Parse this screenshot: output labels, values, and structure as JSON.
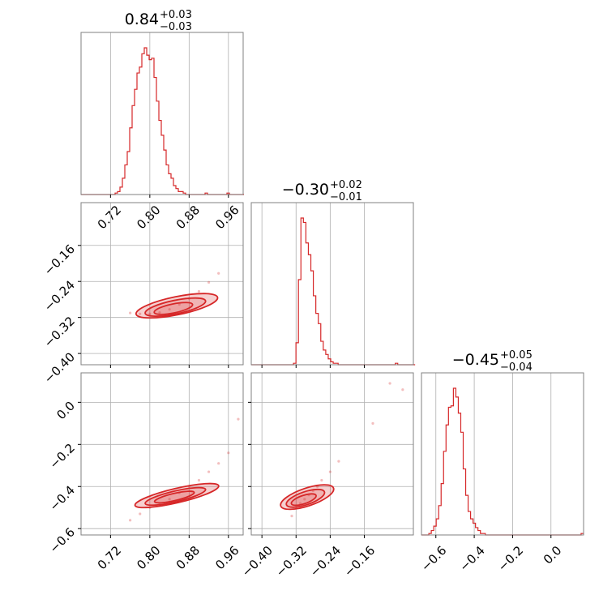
{
  "colors": {
    "series": "#d62728",
    "grid": "#b0b0b0",
    "frame": "#808080",
    "background": "#ffffff"
  },
  "chart_data": [
    {
      "type": "histogram",
      "panel": "1-1",
      "title": {
        "value": "0.84",
        "plus": "+0.03",
        "minus": "−0.03"
      },
      "xlim": [
        0.66,
        0.99
      ],
      "x_ticks": [
        0.72,
        0.8,
        0.88,
        0.96
      ],
      "x_ticklabels": [
        "0.72",
        "0.80",
        "0.88",
        "0.96"
      ],
      "grid": true,
      "bins": {
        "start": 0.66,
        "width": 0.00495,
        "counts": [
          0,
          0,
          0,
          0,
          0,
          0,
          0,
          0,
          0,
          0,
          0,
          0,
          0,
          0,
          1,
          2,
          5,
          11,
          20,
          29,
          45,
          60,
          71,
          82,
          86,
          95,
          99,
          94,
          91,
          92,
          79,
          63,
          50,
          40,
          30,
          20,
          14,
          11,
          6,
          4,
          2,
          2,
          1,
          0,
          0,
          0,
          0,
          0,
          0,
          0,
          0,
          1,
          0,
          0,
          0,
          0,
          0,
          0,
          0,
          0,
          1,
          0,
          0,
          0,
          0,
          0,
          0
        ]
      }
    },
    {
      "type": "scatter",
      "panel": "2-1",
      "xlim": [
        0.66,
        0.99
      ],
      "ylim": [
        -0.425,
        -0.065
      ],
      "x_ticks": [
        0.72,
        0.8,
        0.88,
        0.96
      ],
      "y_ticks": [
        -0.16,
        -0.24,
        -0.32,
        -0.4
      ],
      "y_ticklabels": [
        "−0.16",
        "−0.24",
        "−0.32",
        "−0.40"
      ],
      "grid": true,
      "points": [
        [
          0.8,
          -0.312
        ],
        [
          0.82,
          -0.309
        ],
        [
          0.84,
          -0.302
        ],
        [
          0.86,
          -0.291
        ],
        [
          0.88,
          -0.278
        ],
        [
          0.9,
          -0.262
        ],
        [
          0.78,
          -0.312
        ],
        [
          0.92,
          -0.242
        ],
        [
          0.94,
          -0.222
        ],
        [
          0.76,
          -0.31
        ]
      ],
      "contours": [
        {
          "center": [
            0.848,
            -0.3
          ],
          "axis": [
            0.04,
            0.01
          ],
          "angle": 0.22
        },
        {
          "center": [
            0.852,
            -0.297
          ],
          "axis": [
            0.063,
            0.015
          ],
          "angle": 0.22
        },
        {
          "center": [
            0.855,
            -0.294
          ],
          "axis": [
            0.085,
            0.02
          ],
          "angle": 0.22
        }
      ]
    },
    {
      "type": "histogram",
      "panel": "2-2",
      "title": {
        "value": "−0.30",
        "plus": "+0.02",
        "minus": "−0.01"
      },
      "xlim": [
        -0.425,
        -0.045
      ],
      "x_ticks": [
        -0.4,
        -0.32,
        -0.24,
        -0.16
      ],
      "grid": true,
      "bins": {
        "start": -0.425,
        "width": 0.00582,
        "counts": [
          0,
          0,
          0,
          0,
          0,
          0,
          0,
          0,
          0,
          0,
          0,
          0,
          0,
          0,
          0,
          0,
          0,
          1,
          15,
          58,
          100,
          97,
          83,
          75,
          64,
          47,
          35,
          28,
          16,
          10,
          7,
          4,
          2,
          1,
          1,
          0,
          0,
          0,
          0,
          0,
          0,
          0,
          0,
          0,
          0,
          0,
          0,
          0,
          0,
          0,
          0,
          0,
          0,
          0,
          0,
          0,
          0,
          0,
          1,
          0,
          0,
          0,
          0,
          0,
          0,
          0
        ]
      }
    },
    {
      "type": "scatter",
      "panel": "3-1",
      "xlim": [
        0.66,
        0.99
      ],
      "ylim": [
        -0.63,
        0.14
      ],
      "x_ticks": [
        0.72,
        0.8,
        0.88,
        0.96
      ],
      "x_ticklabels": [
        "0.72",
        "0.80",
        "0.88",
        "0.96"
      ],
      "y_ticks": [
        0.0,
        -0.2,
        -0.4,
        -0.6
      ],
      "y_ticklabels": [
        "0.0",
        "−0.2",
        "−0.4",
        "−0.6"
      ],
      "grid": true,
      "points": [
        [
          0.76,
          -0.56
        ],
        [
          0.78,
          -0.53
        ],
        [
          0.8,
          -0.5
        ],
        [
          0.82,
          -0.48
        ],
        [
          0.84,
          -0.46
        ],
        [
          0.86,
          -0.43
        ],
        [
          0.88,
          -0.4
        ],
        [
          0.9,
          -0.37
        ],
        [
          0.92,
          -0.33
        ],
        [
          0.94,
          -0.29
        ],
        [
          0.96,
          -0.24
        ],
        [
          0.98,
          -0.08
        ]
      ],
      "contours": [
        {
          "center": [
            0.85,
            -0.45
          ],
          "axis": [
            0.046,
            0.012
          ],
          "angle": 0.5
        },
        {
          "center": [
            0.852,
            -0.447
          ],
          "axis": [
            0.07,
            0.018
          ],
          "angle": 0.5
        },
        {
          "center": [
            0.855,
            -0.443
          ],
          "axis": [
            0.097,
            0.024
          ],
          "angle": 0.5
        }
      ]
    },
    {
      "type": "scatter",
      "panel": "3-2",
      "xlim": [
        -0.425,
        -0.045
      ],
      "ylim": [
        -0.63,
        0.14
      ],
      "x_ticks": [
        -0.4,
        -0.32,
        -0.24,
        -0.16
      ],
      "x_ticklabels": [
        "−0.40",
        "−0.32",
        "−0.24",
        "−0.16"
      ],
      "y_ticks": [
        0.0,
        -0.2,
        -0.4,
        -0.6
      ],
      "grid": true,
      "points": [
        [
          -0.33,
          -0.54
        ],
        [
          -0.32,
          -0.5
        ],
        [
          -0.31,
          -0.48
        ],
        [
          -0.3,
          -0.46
        ],
        [
          -0.29,
          -0.44
        ],
        [
          -0.28,
          -0.42
        ],
        [
          -0.27,
          -0.4
        ],
        [
          -0.26,
          -0.37
        ],
        [
          -0.24,
          -0.33
        ],
        [
          -0.22,
          -0.28
        ],
        [
          -0.14,
          -0.1
        ],
        [
          -0.1,
          0.09
        ],
        [
          -0.07,
          0.06
        ]
      ],
      "contours": [
        {
          "center": [
            -0.302,
            -0.462
          ],
          "axis": [
            0.035,
            0.014
          ],
          "angle": 0.6
        },
        {
          "center": [
            -0.298,
            -0.456
          ],
          "axis": [
            0.054,
            0.022
          ],
          "angle": 0.6
        },
        {
          "center": [
            -0.294,
            -0.45
          ],
          "axis": [
            0.075,
            0.03
          ],
          "angle": 0.6
        }
      ]
    },
    {
      "type": "histogram",
      "panel": "3-3",
      "title": {
        "value": "−0.45",
        "plus": "+0.05",
        "minus": "−0.04"
      },
      "xlim": [
        -0.675,
        0.17
      ],
      "x_ticks": [
        -0.6,
        -0.4,
        -0.2,
        0.0
      ],
      "x_ticklabels": [
        "−0.6",
        "−0.4",
        "−0.2",
        "0.0"
      ],
      "grid": true,
      "bins": {
        "start": -0.675,
        "width": 0.0128,
        "counts": [
          0,
          0,
          0,
          1,
          3,
          6,
          11,
          20,
          35,
          57,
          75,
          87,
          88,
          100,
          94,
          83,
          70,
          45,
          27,
          16,
          11,
          8,
          5,
          3,
          1,
          1,
          0,
          0,
          0,
          0,
          0,
          0,
          0,
          0,
          0,
          0,
          0,
          0,
          0,
          0,
          0,
          0,
          0,
          0,
          0,
          0,
          0,
          0,
          0,
          0,
          0,
          0,
          0,
          0,
          0,
          0,
          0,
          0,
          0,
          0,
          0,
          0,
          0,
          0,
          0,
          1
        ]
      }
    }
  ]
}
